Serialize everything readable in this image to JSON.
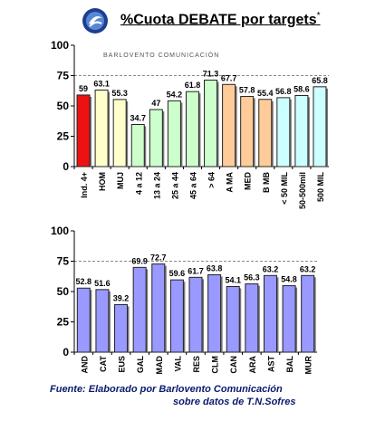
{
  "header": {
    "title": "%Cuota DEBATE por targets",
    "title_mark": "*",
    "logo_icon": "balvento-logo-icon"
  },
  "watermark": "BARLOVENTO COMUNICACIÓN",
  "source": {
    "line1": "Fuente: Elaborado por Barlovento Comunicación",
    "line2": "sobre datos de T.N.Sofres"
  },
  "chart_data": [
    {
      "type": "bar",
      "title": "%Cuota DEBATE por targets",
      "categories": [
        "Ind. 4+",
        "HOM",
        "MUJ",
        "4 a 12",
        "13 a 24",
        "25 a 44",
        "45 a 64",
        "> 64",
        "A MA",
        "MED",
        "B MB",
        "< 50 MIL",
        "50-500mil",
        "500 MIL"
      ],
      "values": [
        59,
        63.1,
        55.3,
        34.7,
        47,
        54.2,
        61.8,
        71.3,
        67.7,
        57.8,
        55.4,
        56.8,
        58.6,
        65.8
      ],
      "value_labels": [
        "59",
        "63.1",
        "55.3",
        "34.7",
        "47",
        "54.2",
        "61.8",
        "71.3",
        "67.7",
        "57.8",
        "55.4",
        "56.8",
        "58.6",
        "65.8"
      ],
      "colors": [
        "#ee1111",
        "#ffffcc",
        "#ffffcc",
        "#ccffcc",
        "#ccffcc",
        "#ccffcc",
        "#ccffcc",
        "#ccffcc",
        "#ffcc99",
        "#ffcc99",
        "#ffcc99",
        "#ccffff",
        "#ccffff",
        "#ccffff"
      ],
      "ylim": [
        0,
        100
      ],
      "yticks": [
        0,
        25,
        50,
        75,
        100
      ],
      "grid": "dashed at 75",
      "xlabel": "",
      "ylabel": ""
    },
    {
      "type": "bar",
      "categories": [
        "AND",
        "CAT",
        "EUS",
        "GAL",
        "MAD",
        "VAL",
        "RES",
        "CLM",
        "CAN",
        "ARA",
        "AST",
        "BAL",
        "MUR"
      ],
      "values": [
        52.8,
        51.6,
        39.2,
        69.9,
        72.7,
        59.6,
        61.7,
        63.8,
        54.1,
        56.3,
        63.2,
        54.8,
        63.2
      ],
      "value_labels": [
        "52.8",
        "51.6",
        "39.2",
        "69.9",
        "72.7",
        "59.6",
        "61.7",
        "63.8",
        "54.1",
        "56.3",
        "63.2",
        "54.8",
        "63.2"
      ],
      "colors": [
        "#9999ff"
      ],
      "ylim": [
        0,
        100
      ],
      "yticks": [
        0,
        25,
        50,
        75,
        100
      ],
      "grid": "dashed at 75",
      "xlabel": "",
      "ylabel": ""
    }
  ]
}
